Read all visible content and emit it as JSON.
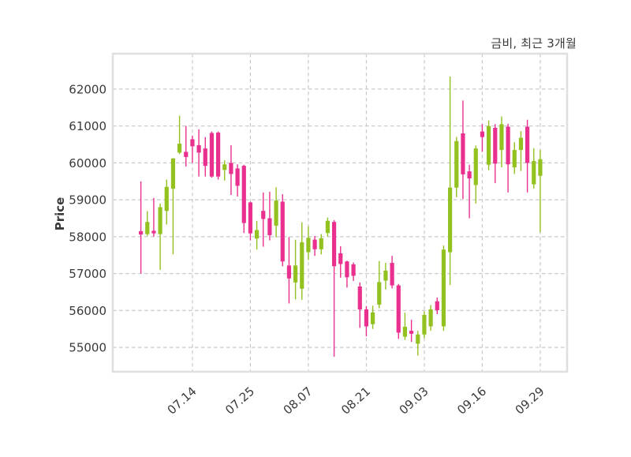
{
  "title": "금비, 최근 3개월",
  "y_axis": {
    "label": "Price",
    "ticks": [
      62000,
      61000,
      60000,
      59000,
      58000,
      57000,
      56000,
      55000
    ]
  },
  "x_axis": {
    "tick_labels": [
      "07.14",
      "07.25",
      "08.07",
      "08.21",
      "09.03",
      "09.16",
      "09.29"
    ]
  },
  "colors": {
    "up": "#93c11f",
    "down": "#e9308f",
    "grid": "#c9c9c9",
    "plot_border": "#dfdfdf",
    "text": "#3a3a3a",
    "background": "#ffffff"
  },
  "chart_data": {
    "type": "candlestick",
    "title": "금비, 최근 3개월",
    "ylabel": "Price",
    "xlabel": "",
    "ylim": [
      54340,
      62960
    ],
    "grid": true,
    "legend": false,
    "candle_format": [
      "open",
      "high",
      "low",
      "close"
    ],
    "x_tick_indices": [
      8,
      17,
      26,
      35,
      44,
      53,
      62
    ],
    "x_tick_labels": [
      "07.14",
      "07.25",
      "08.07",
      "08.21",
      "09.03",
      "09.16",
      "09.29"
    ],
    "candles": [
      [
        58150,
        59500,
        57000,
        58060
      ],
      [
        58070,
        58690,
        58020,
        58400
      ],
      [
        58160,
        59050,
        58000,
        58090
      ],
      [
        58070,
        58900,
        57100,
        58800
      ],
      [
        58700,
        59550,
        58330,
        59350
      ],
      [
        59300,
        60130,
        57520,
        60120
      ],
      [
        60280,
        61280,
        60240,
        60520
      ],
      [
        60300,
        61000,
        59900,
        60160
      ],
      [
        60640,
        60740,
        60000,
        60450
      ],
      [
        60480,
        60910,
        59630,
        60280
      ],
      [
        60390,
        60700,
        59630,
        59920
      ],
      [
        60810,
        60850,
        59600,
        59630
      ],
      [
        60820,
        60850,
        59550,
        59630
      ],
      [
        59810,
        60070,
        59520,
        59960
      ],
      [
        60000,
        60480,
        59130,
        59700
      ],
      [
        59850,
        59960,
        59090,
        59380
      ],
      [
        59920,
        59950,
        58100,
        58370
      ],
      [
        58930,
        58950,
        57900,
        58090
      ],
      [
        57950,
        58430,
        57650,
        58180
      ],
      [
        58700,
        59200,
        57730,
        58480
      ],
      [
        58500,
        59220,
        57900,
        58040
      ],
      [
        58300,
        59340,
        57980,
        58980
      ],
      [
        58950,
        59150,
        57200,
        57330
      ],
      [
        57220,
        57990,
        56190,
        56870
      ],
      [
        56760,
        57920,
        56300,
        57220
      ],
      [
        56590,
        58390,
        56290,
        57850
      ],
      [
        57580,
        58280,
        57370,
        57970
      ],
      [
        57920,
        58020,
        57480,
        57660
      ],
      [
        57660,
        58070,
        57520,
        57960
      ],
      [
        58100,
        58520,
        58000,
        58430
      ],
      [
        58400,
        58450,
        54750,
        57200
      ],
      [
        57550,
        57740,
        56890,
        57260
      ],
      [
        57330,
        57350,
        56620,
        56900
      ],
      [
        57250,
        57300,
        56800,
        56940
      ],
      [
        56650,
        56760,
        55530,
        56030
      ],
      [
        56030,
        56120,
        55300,
        55570
      ],
      [
        55630,
        56130,
        55500,
        55950
      ],
      [
        56160,
        57340,
        56060,
        56770
      ],
      [
        56810,
        57290,
        56570,
        57080
      ],
      [
        57290,
        57480,
        56600,
        56680
      ],
      [
        56680,
        56720,
        55230,
        55400
      ],
      [
        55290,
        55940,
        55200,
        55560
      ],
      [
        55450,
        55750,
        55150,
        55370
      ],
      [
        55100,
        55450,
        54780,
        55350
      ],
      [
        55350,
        55980,
        55250,
        55880
      ],
      [
        55570,
        56150,
        55450,
        56030
      ],
      [
        56250,
        56350,
        55900,
        56010
      ],
      [
        55570,
        57760,
        55450,
        57650
      ],
      [
        57580,
        62340,
        56690,
        59330
      ],
      [
        59330,
        60700,
        59070,
        60590
      ],
      [
        60800,
        61690,
        59020,
        59690
      ],
      [
        59770,
        59950,
        58500,
        59580
      ],
      [
        59400,
        60470,
        58900,
        60390
      ],
      [
        60850,
        61050,
        60300,
        60700
      ],
      [
        59950,
        61150,
        59800,
        61000
      ],
      [
        60950,
        61050,
        59450,
        59980
      ],
      [
        60350,
        61260,
        59880,
        61050
      ],
      [
        60980,
        61060,
        59200,
        59960
      ],
      [
        59880,
        60560,
        59700,
        60350
      ],
      [
        60350,
        60860,
        59780,
        60680
      ],
      [
        60980,
        61170,
        59200,
        60000
      ],
      [
        59420,
        60400,
        59300,
        60050
      ],
      [
        59650,
        60350,
        58120,
        60100
      ]
    ]
  }
}
